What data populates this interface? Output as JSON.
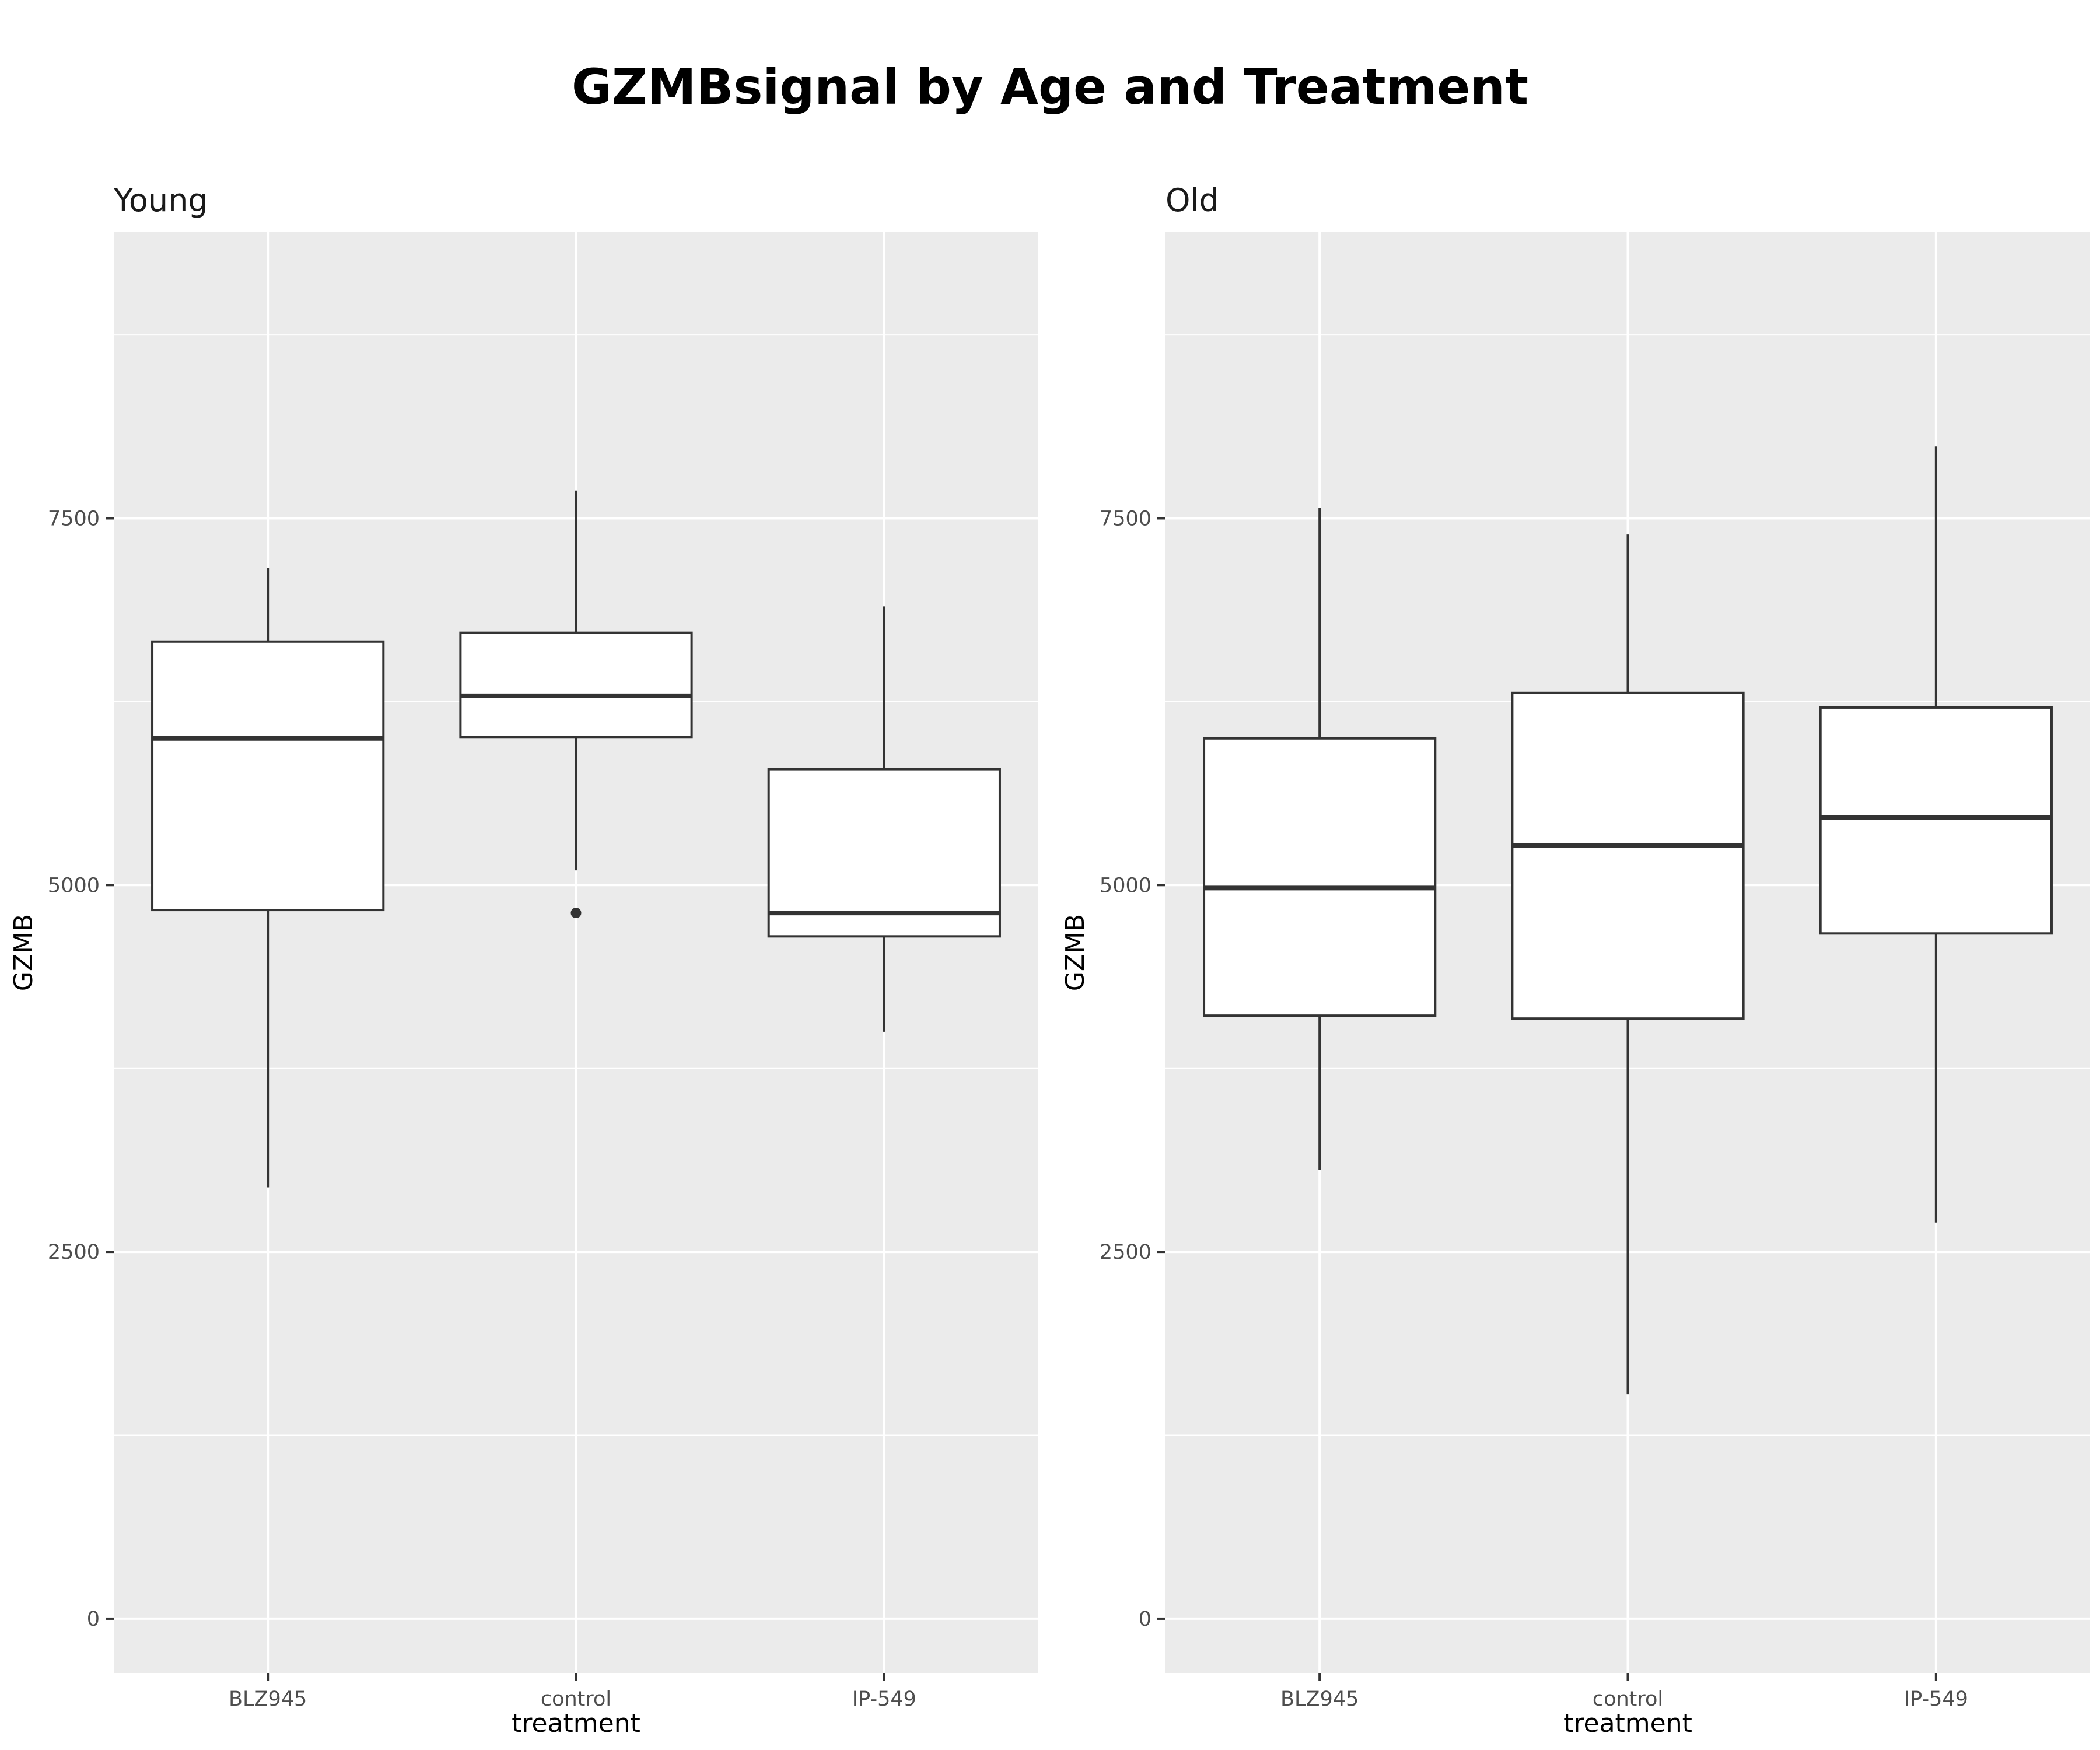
{
  "chart_data": {
    "type": "boxplot",
    "title": "GZMBsignal by Age and Treatment",
    "xlabel": "treatment",
    "ylabel": "GZMB",
    "ylim": [
      -370,
      9450
    ],
    "yticks": [
      0,
      2500,
      5000,
      7500
    ],
    "ytick_labels": [
      "0",
      "2500",
      "5000",
      "7500"
    ],
    "categories": [
      "BLZ945",
      "control",
      "IP-549"
    ],
    "facets": [
      {
        "name": "Young",
        "boxes": [
          {
            "category": "BLZ945",
            "lower_whisker": 2940,
            "q1": 4830,
            "median": 6000,
            "q3": 6660,
            "upper_whisker": 7160,
            "outliers": []
          },
          {
            "category": "control",
            "lower_whisker": 5100,
            "q1": 6010,
            "median": 6290,
            "q3": 6720,
            "upper_whisker": 7690,
            "outliers": [
              4810
            ]
          },
          {
            "category": "IP-549",
            "lower_whisker": 4000,
            "q1": 4650,
            "median": 4810,
            "q3": 5790,
            "upper_whisker": 6900,
            "outliers": []
          }
        ]
      },
      {
        "name": "Old",
        "boxes": [
          {
            "category": "BLZ945",
            "lower_whisker": 3060,
            "q1": 4110,
            "median": 4980,
            "q3": 6000,
            "upper_whisker": 7570,
            "outliers": []
          },
          {
            "category": "control",
            "lower_whisker": 1530,
            "q1": 4090,
            "median": 5270,
            "q3": 6310,
            "upper_whisker": 7390,
            "outliers": []
          },
          {
            "category": "IP-549",
            "lower_whisker": 2700,
            "q1": 4670,
            "median": 5460,
            "q3": 6210,
            "upper_whisker": 7990,
            "outliers": []
          }
        ]
      }
    ]
  }
}
